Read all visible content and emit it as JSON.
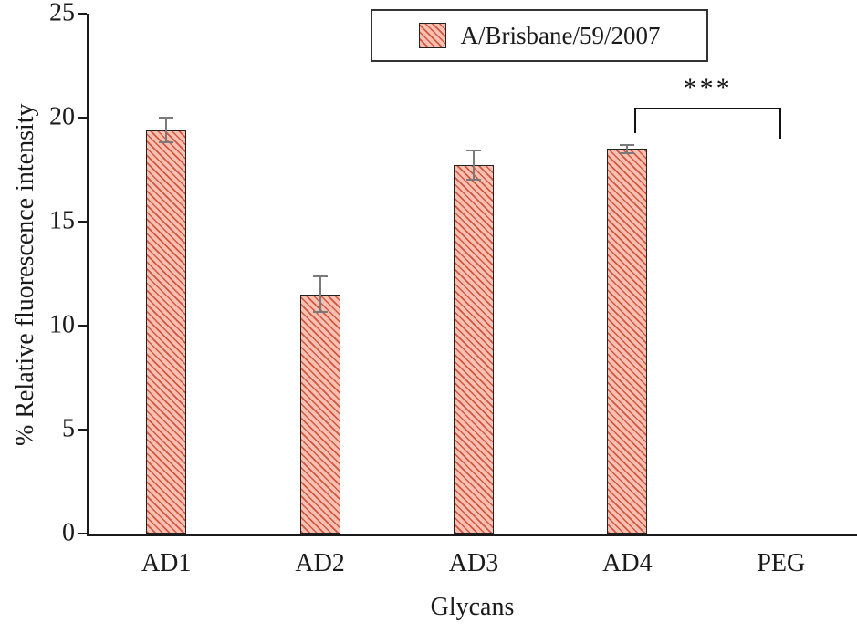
{
  "chart_data": {
    "type": "bar",
    "title": "",
    "xlabel": "Glycans",
    "ylabel": "% Relative fluorescence intensity",
    "categories": [
      "AD1",
      "AD2",
      "AD3",
      "AD4",
      "PEG"
    ],
    "series": [
      {
        "name": "A/Brisbane/59/2007",
        "values": [
          19.4,
          11.5,
          17.7,
          18.5,
          0
        ],
        "errors": [
          0.6,
          0.85,
          0.7,
          0.2,
          0
        ]
      }
    ],
    "ylim": [
      0,
      25
    ],
    "yticks": [
      0,
      5,
      10,
      15,
      20,
      25
    ],
    "grid": false,
    "legend_position": "top-center",
    "bar_fill_color": "#f7c0b2",
    "bar_hatch_color": "#d2573f",
    "bar_outline_color": "#222222",
    "error_bar_color": "#7a7a7a",
    "significance": {
      "text": "***",
      "from": "AD4",
      "to": "PEG",
      "y_value": 20.5
    }
  }
}
